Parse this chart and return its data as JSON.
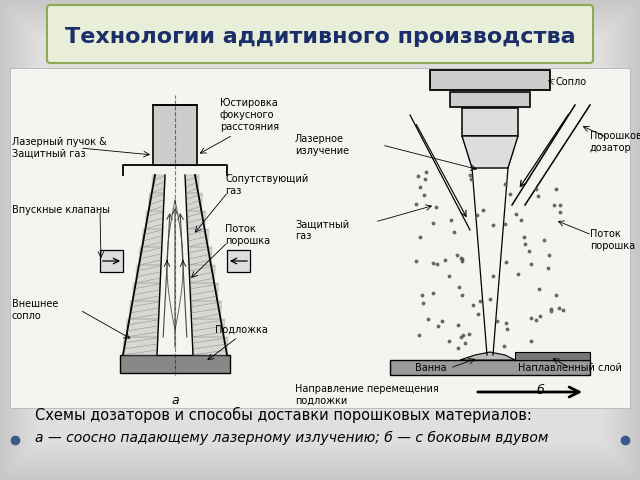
{
  "title": "Технологии аддитивного производства",
  "title_color": "#1a2e6b",
  "title_bg_color": "#e8eed8",
  "title_border_color": "#8aaa55",
  "slide_bg_outer": "#c8c8c8",
  "slide_bg_inner": "#e8e8e8",
  "white_area_color": "#f5f5f0",
  "caption_line1": "Схемы дозаторов и способы доставки порошковых материалов:",
  "caption_line2": "а — соосно падающему лазерному излучению; б — с боковым вдувом",
  "caption_fontsize": 10.5,
  "title_fontsize": 16,
  "label_fontsize": 7,
  "bullet_color": "#3a5a8a"
}
